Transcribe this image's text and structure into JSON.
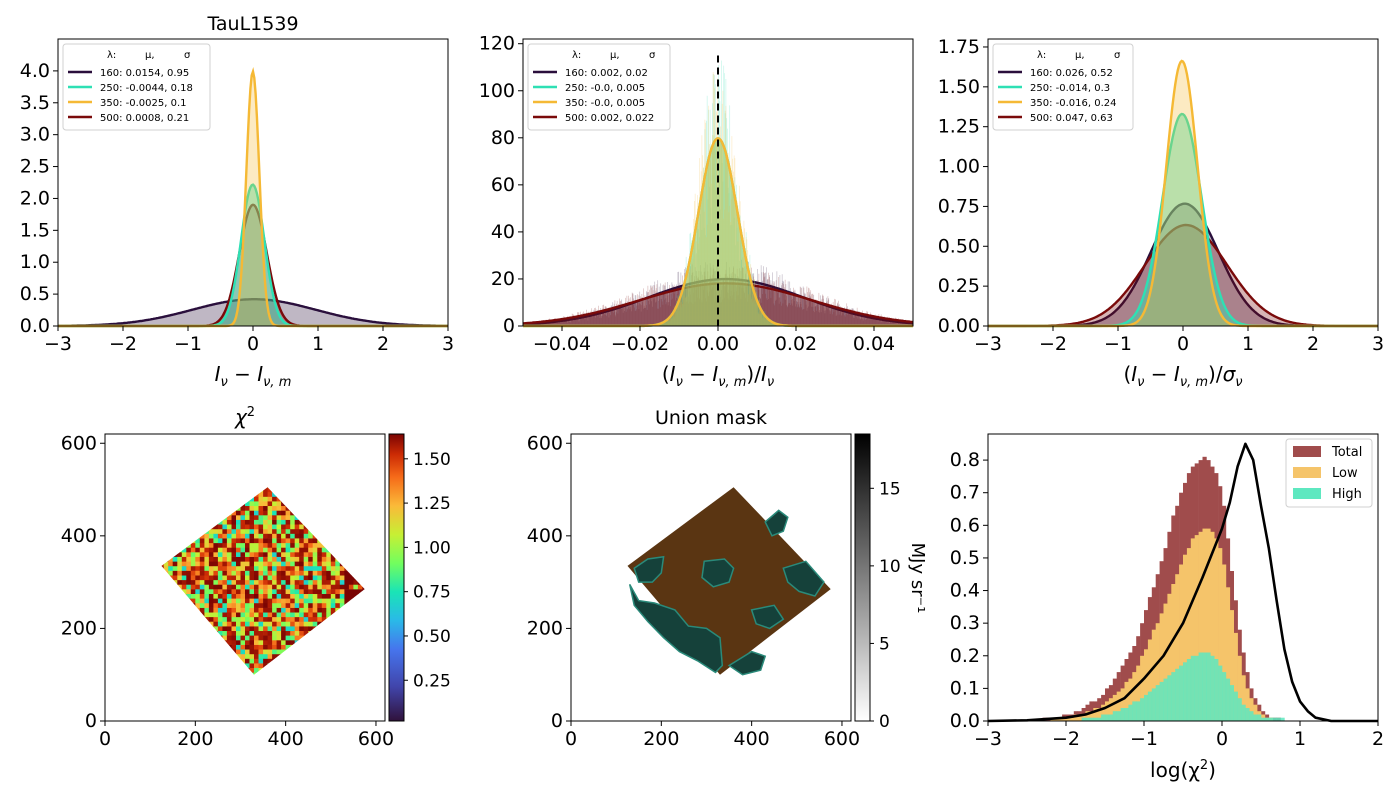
{
  "figure": {
    "subtitle": "TauL1539"
  },
  "legend_header": [
    "λ:",
    "μ,",
    "σ"
  ],
  "colors": {
    "160": "#2a0f3c",
    "250": "#2ee0b4",
    "350": "#f5b935",
    "500": "#7a0a0a",
    "total": "#a04c4c",
    "low": "#f5c46a",
    "high": "#5ee8c0",
    "curve": "#000000",
    "mask_fill": "#5a3512",
    "mask_region": "#15413a"
  },
  "chart_data": [
    {
      "id": "p1",
      "type": "area",
      "title": "TauL1539",
      "xlabel": "I_ν − I_ν,m",
      "ylabel": "",
      "xlim": [
        -3,
        3
      ],
      "ylim": [
        0,
        4.5
      ],
      "xticks": [
        "−3",
        "−2",
        "−1",
        "0",
        "1",
        "2",
        "3"
      ],
      "yticks": [
        "0.0",
        "0.5",
        "1.0",
        "1.5",
        "2.0",
        "2.5",
        "3.0",
        "3.5",
        "4.0"
      ],
      "legend_loc": "upper left",
      "series": [
        {
          "name": "160: 0.0154,  0.95",
          "mu": 0.0154,
          "sigma": 0.95
        },
        {
          "name": "250: -0.0044,  0.18",
          "mu": -0.0044,
          "sigma": 0.18
        },
        {
          "name": "350: -0.0025,  0.1",
          "mu": -0.0025,
          "sigma": 0.1
        },
        {
          "name": "500: 0.0008,  0.21",
          "mu": 0.0008,
          "sigma": 0.21
        }
      ]
    },
    {
      "id": "p2",
      "type": "area",
      "title": "",
      "xlabel": "(I_ν − I_ν,m)/I_ν",
      "ylabel": "",
      "xlim": [
        -0.05,
        0.05
      ],
      "ylim": [
        0,
        122
      ],
      "xticks": [
        "−0.04",
        "−0.02",
        "0.00",
        "0.02",
        "0.04"
      ],
      "yticks": [
        "0",
        "20",
        "40",
        "60",
        "80",
        "100",
        "120"
      ],
      "vline": 0,
      "legend_loc": "upper left",
      "series": [
        {
          "name": "160: 0.002,  0.02",
          "mu": 0.002,
          "sigma": 0.02
        },
        {
          "name": "250: -0.0,  0.005",
          "mu": 0.0,
          "sigma": 0.005
        },
        {
          "name": "350: -0.0,  0.005",
          "mu": 0.0,
          "sigma": 0.005
        },
        {
          "name": "500: 0.002,  0.022",
          "mu": 0.002,
          "sigma": 0.022
        }
      ]
    },
    {
      "id": "p3",
      "type": "area",
      "title": "",
      "xlabel": "(I_ν − I_ν,m)/σ_ν",
      "ylabel": "",
      "xlim": [
        -3,
        3
      ],
      "ylim": [
        0,
        1.8
      ],
      "xticks": [
        "−3",
        "−2",
        "−1",
        "0",
        "1",
        "2",
        "3"
      ],
      "yticks": [
        "0.00",
        "0.25",
        "0.50",
        "0.75",
        "1.00",
        "1.25",
        "1.50",
        "1.75"
      ],
      "legend_loc": "upper left",
      "series": [
        {
          "name": "160: 0.026,  0.52",
          "mu": 0.026,
          "sigma": 0.52
        },
        {
          "name": "250: -0.014,  0.3",
          "mu": -0.014,
          "sigma": 0.3
        },
        {
          "name": "350: -0.016,  0.24",
          "mu": -0.016,
          "sigma": 0.24
        },
        {
          "name": "500: 0.047,  0.63",
          "mu": 0.047,
          "sigma": 0.63
        }
      ]
    },
    {
      "id": "p4",
      "type": "heatmap",
      "title": "χ²",
      "xlim": [
        0,
        620
      ],
      "ylim": [
        0,
        620
      ],
      "xticks": [
        "0",
        "200",
        "400",
        "600"
      ],
      "yticks": [
        "0",
        "200",
        "400",
        "600"
      ],
      "footprint": [
        [
          125,
          335
        ],
        [
          360,
          505
        ],
        [
          575,
          285
        ],
        [
          330,
          100
        ]
      ],
      "colorbar": {
        "min": 0.02,
        "max": 1.64,
        "ticks": [
          "0.25",
          "0.50",
          "0.75",
          "1.00",
          "1.25",
          "1.50"
        ],
        "cmap": "turbo"
      }
    },
    {
      "id": "p5",
      "type": "heatmap",
      "title": "Union mask",
      "xlim": [
        0,
        620
      ],
      "ylim": [
        0,
        620
      ],
      "xticks": [
        "0",
        "200",
        "400",
        "600"
      ],
      "yticks": [
        "0",
        "200",
        "400",
        "600"
      ],
      "footprint": [
        [
          125,
          335
        ],
        [
          360,
          505
        ],
        [
          575,
          285
        ],
        [
          330,
          100
        ]
      ],
      "colorbar": {
        "min": 0,
        "max": 18.5,
        "ticks": [
          "0",
          "5",
          "10",
          "15"
        ],
        "cmap": "gray",
        "label": "MJy sr⁻¹"
      }
    },
    {
      "id": "p6",
      "type": "bar",
      "title": "",
      "xlabel": "log(χ²)",
      "ylabel": "",
      "xlim": [
        -3,
        2
      ],
      "ylim": [
        0,
        0.88
      ],
      "xticks": [
        "−3",
        "−2",
        "−1",
        "0",
        "1",
        "2"
      ],
      "yticks": [
        "0.0",
        "0.1",
        "0.2",
        "0.3",
        "0.4",
        "0.5",
        "0.6",
        "0.7",
        "0.8"
      ],
      "legend_loc": "upper right",
      "bins": {
        "start": -3,
        "step": 0.05
      },
      "series": [
        {
          "name": "Total",
          "values": [
            0.0,
            0.0,
            0.0,
            0.0,
            0.0,
            0.0,
            0.0,
            0.0,
            0.0,
            0.0,
            0.0,
            0.0,
            0.0,
            0.0,
            0.01,
            0.01,
            0.01,
            0.01,
            0.01,
            0.02,
            0.02,
            0.02,
            0.03,
            0.03,
            0.04,
            0.05,
            0.06,
            0.06,
            0.07,
            0.08,
            0.1,
            0.11,
            0.13,
            0.15,
            0.17,
            0.19,
            0.21,
            0.23,
            0.26,
            0.3,
            0.34,
            0.38,
            0.41,
            0.45,
            0.49,
            0.53,
            0.58,
            0.63,
            0.66,
            0.7,
            0.73,
            0.76,
            0.78,
            0.79,
            0.8,
            0.81,
            0.8,
            0.78,
            0.76,
            0.72,
            0.66,
            0.56,
            0.46,
            0.37,
            0.28,
            0.21,
            0.15,
            0.1,
            0.07,
            0.05,
            0.03,
            0.02,
            0.01,
            0.01,
            0.01,
            0.0,
            0.0,
            0.0,
            0.0,
            0.0,
            0.0,
            0.0,
            0.0,
            0.0,
            0.0,
            0.0,
            0.0,
            0.0,
            0.0,
            0.0,
            0.0,
            0.0,
            0.0,
            0.0,
            0.0,
            0.0,
            0.0,
            0.0,
            0.0,
            0.0
          ]
        },
        {
          "name": "Low",
          "values": [
            0.0,
            0.0,
            0.0,
            0.0,
            0.0,
            0.0,
            0.0,
            0.0,
            0.0,
            0.0,
            0.0,
            0.0,
            0.0,
            0.0,
            0.0,
            0.0,
            0.01,
            0.01,
            0.01,
            0.01,
            0.01,
            0.01,
            0.02,
            0.02,
            0.02,
            0.03,
            0.03,
            0.04,
            0.04,
            0.05,
            0.06,
            0.07,
            0.08,
            0.09,
            0.1,
            0.12,
            0.13,
            0.15,
            0.17,
            0.2,
            0.22,
            0.25,
            0.28,
            0.3,
            0.33,
            0.36,
            0.39,
            0.42,
            0.45,
            0.48,
            0.51,
            0.53,
            0.56,
            0.57,
            0.58,
            0.59,
            0.59,
            0.58,
            0.56,
            0.53,
            0.48,
            0.41,
            0.34,
            0.27,
            0.2,
            0.14,
            0.1,
            0.07,
            0.05,
            0.03,
            0.02,
            0.01,
            0.01,
            0.0,
            0.0,
            0.0,
            0.0,
            0.0,
            0.0,
            0.0,
            0.0,
            0.0,
            0.0,
            0.0,
            0.0,
            0.0,
            0.0,
            0.0,
            0.0,
            0.0,
            0.0,
            0.0,
            0.0,
            0.0,
            0.0,
            0.0,
            0.0,
            0.0,
            0.0,
            0.0
          ]
        },
        {
          "name": "High",
          "values": [
            0.0,
            0.0,
            0.0,
            0.0,
            0.0,
            0.0,
            0.0,
            0.0,
            0.0,
            0.0,
            0.0,
            0.0,
            0.0,
            0.0,
            0.0,
            0.0,
            0.0,
            0.0,
            0.0,
            0.0,
            0.0,
            0.0,
            0.0,
            0.0,
            0.01,
            0.01,
            0.01,
            0.01,
            0.01,
            0.02,
            0.02,
            0.02,
            0.03,
            0.03,
            0.04,
            0.04,
            0.05,
            0.06,
            0.06,
            0.07,
            0.08,
            0.09,
            0.1,
            0.11,
            0.12,
            0.13,
            0.14,
            0.15,
            0.16,
            0.17,
            0.18,
            0.19,
            0.2,
            0.2,
            0.21,
            0.21,
            0.21,
            0.2,
            0.19,
            0.17,
            0.15,
            0.13,
            0.11,
            0.09,
            0.07,
            0.05,
            0.04,
            0.03,
            0.02,
            0.02,
            0.01,
            0.01,
            0.01,
            0.01,
            0.01,
            0.01,
            0.0,
            0.0,
            0.0,
            0.0,
            0.0,
            0.0,
            0.0,
            0.0,
            0.0,
            0.0,
            0.0,
            0.0,
            0.0,
            0.0,
            0.0,
            0.0,
            0.0,
            0.0,
            0.0,
            0.0,
            0.0,
            0.0,
            0.0,
            0.0
          ]
        }
      ],
      "curve": {
        "x": [
          -3.0,
          -2.5,
          -2.0,
          -1.75,
          -1.5,
          -1.25,
          -1.0,
          -0.75,
          -0.5,
          -0.25,
          0.0,
          0.1,
          0.2,
          0.3,
          0.4,
          0.5,
          0.6,
          0.7,
          0.8,
          0.9,
          1.0,
          1.1,
          1.2,
          1.4,
          2.0
        ],
        "y": [
          0.0,
          0.002,
          0.01,
          0.02,
          0.04,
          0.07,
          0.13,
          0.2,
          0.3,
          0.44,
          0.59,
          0.67,
          0.78,
          0.85,
          0.8,
          0.66,
          0.53,
          0.37,
          0.22,
          0.12,
          0.06,
          0.03,
          0.01,
          0.0,
          0.0
        ]
      }
    }
  ]
}
